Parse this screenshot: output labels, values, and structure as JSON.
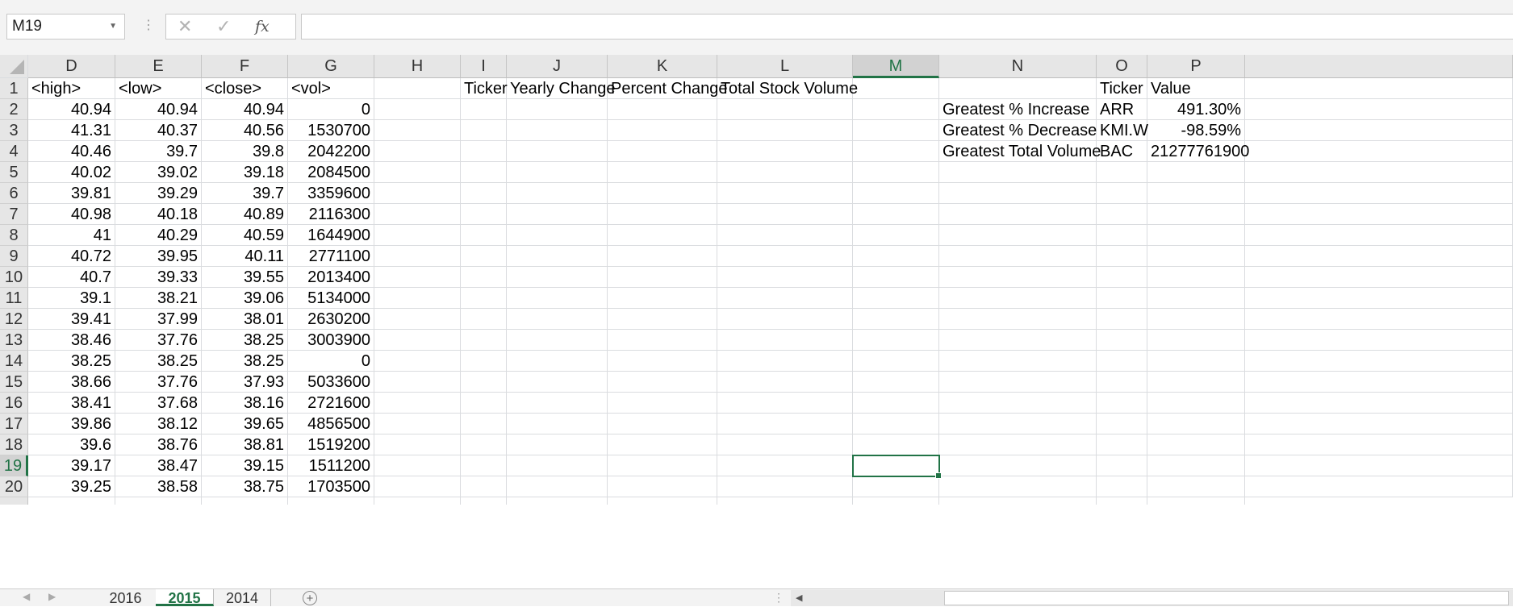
{
  "formula_bar": {
    "name_box": "M19",
    "cancel_icon": "✕",
    "enter_icon": "✓",
    "fx_label": "fx",
    "formula": ""
  },
  "columns": [
    "D",
    "E",
    "F",
    "G",
    "H",
    "I",
    "J",
    "K",
    "L",
    "M",
    "N",
    "O",
    "P"
  ],
  "selected_column": "M",
  "selected_row": "19",
  "rows": [
    {
      "n": "1",
      "D": "<high>",
      "E": "<low>",
      "F": "<close>",
      "G": "<vol>",
      "I": "Ticker",
      "J": "Yearly Change",
      "K": "Percent Change",
      "L": "Total Stock Volume",
      "O": "Ticker",
      "P": "Value"
    },
    {
      "n": "2",
      "D": "40.94",
      "E": "40.94",
      "F": "40.94",
      "G": "0",
      "N": "Greatest % Increase",
      "O": "ARR",
      "P": "491.30%"
    },
    {
      "n": "3",
      "D": "41.31",
      "E": "40.37",
      "F": "40.56",
      "G": "1530700",
      "N": "Greatest % Decrease",
      "O": "KMI.W",
      "P": "-98.59%"
    },
    {
      "n": "4",
      "D": "40.46",
      "E": "39.7",
      "F": "39.8",
      "G": "2042200",
      "N": "Greatest Total Volume",
      "O": "BAC",
      "P": "21277761900"
    },
    {
      "n": "5",
      "D": "40.02",
      "E": "39.02",
      "F": "39.18",
      "G": "2084500"
    },
    {
      "n": "6",
      "D": "39.81",
      "E": "39.29",
      "F": "39.7",
      "G": "3359600"
    },
    {
      "n": "7",
      "D": "40.98",
      "E": "40.18",
      "F": "40.89",
      "G": "2116300"
    },
    {
      "n": "8",
      "D": "41",
      "E": "40.29",
      "F": "40.59",
      "G": "1644900"
    },
    {
      "n": "9",
      "D": "40.72",
      "E": "39.95",
      "F": "40.11",
      "G": "2771100"
    },
    {
      "n": "10",
      "D": "40.7",
      "E": "39.33",
      "F": "39.55",
      "G": "2013400"
    },
    {
      "n": "11",
      "D": "39.1",
      "E": "38.21",
      "F": "39.06",
      "G": "5134000"
    },
    {
      "n": "12",
      "D": "39.41",
      "E": "37.99",
      "F": "38.01",
      "G": "2630200"
    },
    {
      "n": "13",
      "D": "38.46",
      "E": "37.76",
      "F": "38.25",
      "G": "3003900"
    },
    {
      "n": "14",
      "D": "38.25",
      "E": "38.25",
      "F": "38.25",
      "G": "0"
    },
    {
      "n": "15",
      "D": "38.66",
      "E": "37.76",
      "F": "37.93",
      "G": "5033600"
    },
    {
      "n": "16",
      "D": "38.41",
      "E": "37.68",
      "F": "38.16",
      "G": "2721600"
    },
    {
      "n": "17",
      "D": "39.86",
      "E": "38.12",
      "F": "39.65",
      "G": "4856500"
    },
    {
      "n": "18",
      "D": "39.6",
      "E": "38.76",
      "F": "38.81",
      "G": "1519200"
    },
    {
      "n": "19",
      "D": "39.17",
      "E": "38.47",
      "F": "39.15",
      "G": "1511200"
    },
    {
      "n": "20",
      "D": "39.25",
      "E": "38.58",
      "F": "38.75",
      "G": "1703500"
    }
  ],
  "sheets": {
    "tabs": [
      "2016",
      "2015",
      "2014"
    ],
    "active": "2015",
    "add_label": "+"
  }
}
